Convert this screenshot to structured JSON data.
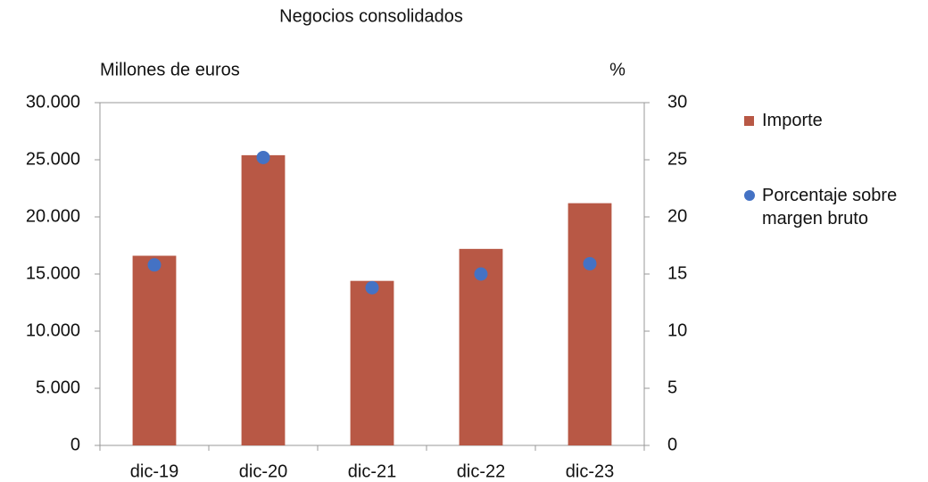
{
  "chart_data": {
    "type": "bar",
    "title": "Negocios consolidados",
    "y_label": "Millones de euros",
    "y2_label": "%",
    "categories": [
      "dic-19",
      "dic-20",
      "dic-21",
      "dic-22",
      "dic-23"
    ],
    "series": [
      {
        "name": "Importe",
        "type": "bar",
        "color": "#b85845",
        "values": [
          16600,
          25400,
          14400,
          17200,
          21200
        ]
      },
      {
        "name": "Porcentaje sobre margen bruto",
        "type": "scatter",
        "axis": "y2",
        "color": "#4472c4",
        "values": [
          15.8,
          25.2,
          13.8,
          15.0,
          15.9
        ]
      }
    ],
    "ylim": [
      0,
      30000
    ],
    "yticks": [
      {
        "value": 0,
        "label": "0"
      },
      {
        "value": 5000,
        "label": "5.000"
      },
      {
        "value": 10000,
        "label": "10.000"
      },
      {
        "value": 15000,
        "label": "15.000"
      },
      {
        "value": 20000,
        "label": "20.000"
      },
      {
        "value": 25000,
        "label": "25.000"
      },
      {
        "value": 30000,
        "label": "30.000"
      }
    ],
    "y2lim": [
      0,
      30
    ],
    "y2ticks": [
      0,
      5,
      10,
      15,
      20,
      25,
      30
    ],
    "grid": false,
    "legend": "right"
  }
}
